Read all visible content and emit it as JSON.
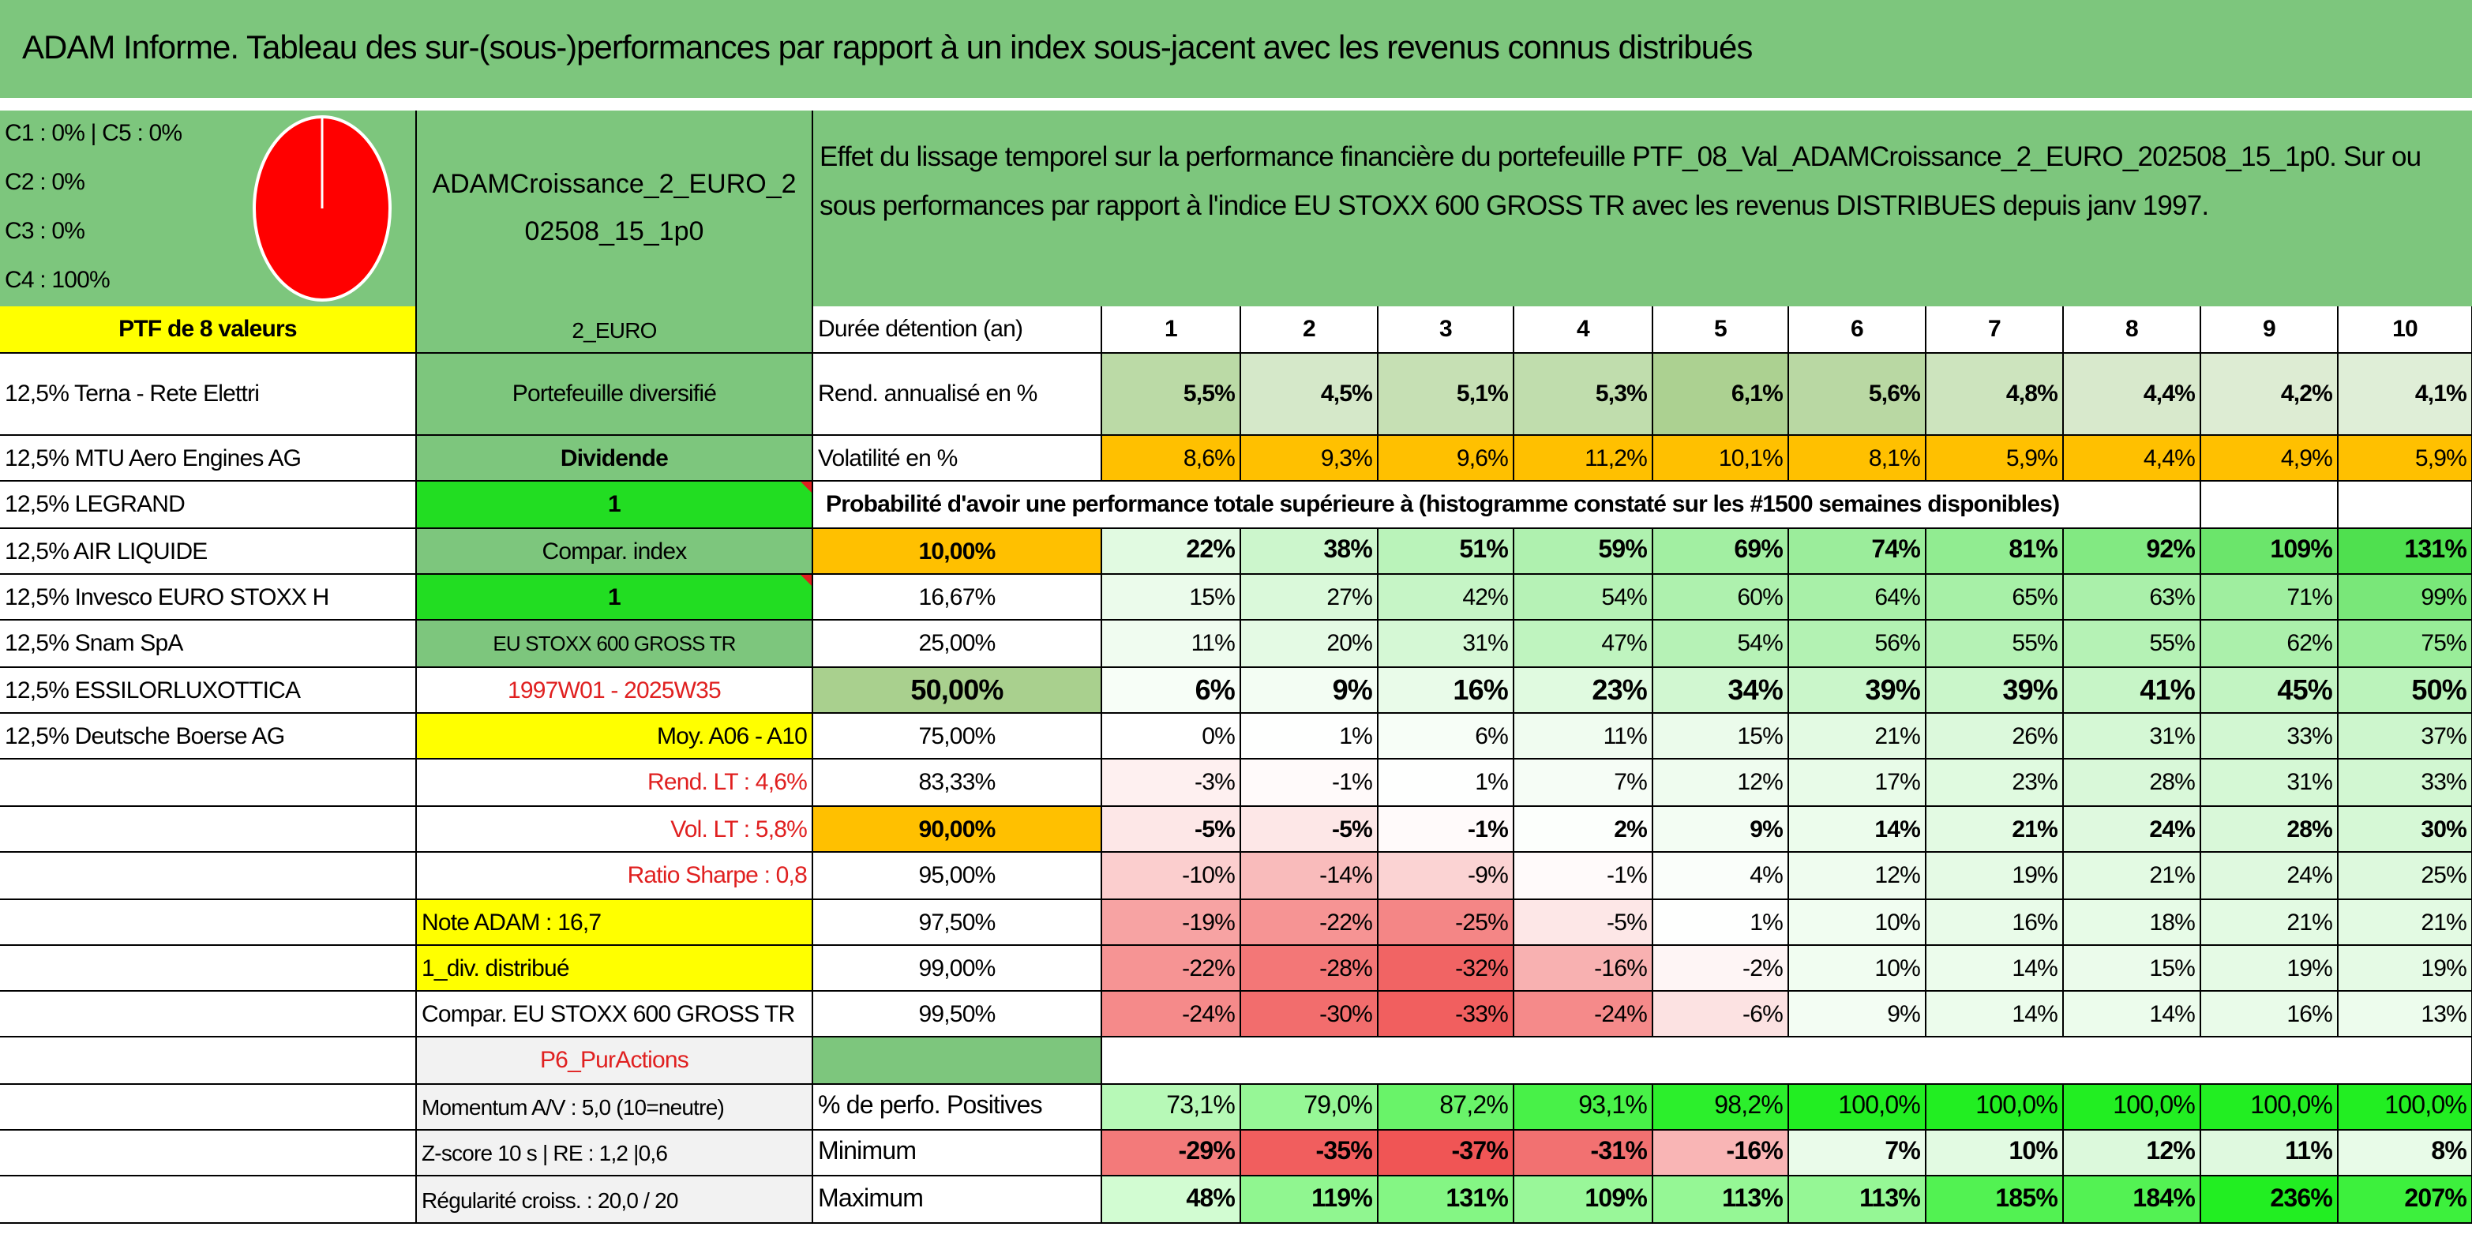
{
  "title": "ADAM Informe. Tableau des sur-(sous-)performances par rapport à un index sous-jacent avec les revenus connus distribués",
  "legend": [
    "C1 : 0% | C5 : 0%",
    "C2 : 0%",
    "C3 : 0%",
    "C4 : 100%"
  ],
  "fund": "ADAMCroissance_2_EURO_202508_15_1p0",
  "description": "Effet du lissage temporel sur la performance financière du portefeuille PTF_08_Val_ADAMCroissance_2_EURO_202508_15_1p0. Sur ou sous performances par rapport à l'indice EU STOXX 600 GROSS TR avec les revenus DISTRIBUES depuis janv 1997.",
  "holdings_header": "PTF de 8 valeurs",
  "holdings": [
    "12,5% Terna - Rete Elettri",
    "12,5% MTU Aero Engines AG",
    "12,5% LEGRAND",
    "12,5% AIR LIQUIDE",
    "12,5% Invesco EURO STOXX H",
    "12,5% Snam SpA",
    "12,5% ESSILORLUXOTTICA",
    "12,5% Deutsche Boerse AG"
  ],
  "info": [
    "2_EURO",
    "Portefeuille diversifié",
    "Dividende",
    "1",
    "Compar. index",
    "1",
    "EU STOXX 600 GROSS TR",
    "1997W01 - 2025W35",
    "Moy. A06 - A10",
    "Rend. LT : 4,6%",
    "Vol. LT : 5,8%",
    "Ratio Sharpe : 0,8",
    "Note ADAM : 16,7",
    "1_div. distribué",
    "Compar. EU STOXX 600 GROSS TR",
    "P6_PurActions",
    "Momentum A/V : 5,0 (10=neutre)",
    "Z-score 10 s | RE : 1,2 |0,6",
    "Régularité croiss. : 20,0 / 20"
  ],
  "years_label": "Durée détention (an)",
  "years": [
    1,
    2,
    3,
    4,
    5,
    6,
    7,
    8,
    9,
    10
  ],
  "annual": {
    "label": "Rend. annualisé en %",
    "values": [
      "5,5%",
      "4,5%",
      "5,1%",
      "5,3%",
      "6,1%",
      "5,6%",
      "4,8%",
      "4,4%",
      "4,2%",
      "4,1%"
    ]
  },
  "volatility": {
    "label": "Volatilité en %",
    "values": [
      "8,6%",
      "9,3%",
      "9,6%",
      "11,2%",
      "10,1%",
      "8,1%",
      "5,9%",
      "4,4%",
      "4,9%",
      "5,9%"
    ]
  },
  "probability_title": "Probabilité d'avoir une performance totale supérieure à (histogramme constaté sur les #1500 semaines disponibles)",
  "probability": {
    "thresholds": [
      "10,00%",
      "16,67%",
      "25,00%",
      "50,00%",
      "75,00%",
      "83,33%",
      "90,00%",
      "95,00%",
      "97,50%",
      "99,00%",
      "99,50%"
    ],
    "rows": [
      [
        "22%",
        "38%",
        "51%",
        "59%",
        "69%",
        "74%",
        "81%",
        "92%",
        "109%",
        "131%"
      ],
      [
        "15%",
        "27%",
        "42%",
        "54%",
        "60%",
        "64%",
        "65%",
        "63%",
        "71%",
        "99%"
      ],
      [
        "11%",
        "20%",
        "31%",
        "47%",
        "54%",
        "56%",
        "55%",
        "55%",
        "62%",
        "75%"
      ],
      [
        "6%",
        "9%",
        "16%",
        "23%",
        "34%",
        "39%",
        "39%",
        "41%",
        "45%",
        "50%"
      ],
      [
        "0%",
        "1%",
        "6%",
        "11%",
        "15%",
        "21%",
        "26%",
        "31%",
        "33%",
        "37%"
      ],
      [
        "-3%",
        "-1%",
        "1%",
        "7%",
        "12%",
        "17%",
        "23%",
        "28%",
        "31%",
        "33%"
      ],
      [
        "-5%",
        "-5%",
        "-1%",
        "2%",
        "9%",
        "14%",
        "21%",
        "24%",
        "28%",
        "30%"
      ],
      [
        "-10%",
        "-14%",
        "-9%",
        "-1%",
        "4%",
        "12%",
        "19%",
        "21%",
        "24%",
        "25%"
      ],
      [
        "-19%",
        "-22%",
        "-25%",
        "-5%",
        "1%",
        "10%",
        "16%",
        "18%",
        "21%",
        "21%"
      ],
      [
        "-22%",
        "-28%",
        "-32%",
        "-16%",
        "-2%",
        "10%",
        "14%",
        "15%",
        "19%",
        "19%"
      ],
      [
        "-24%",
        "-30%",
        "-33%",
        "-24%",
        "-6%",
        "9%",
        "14%",
        "14%",
        "16%",
        "13%"
      ]
    ]
  },
  "stats": [
    {
      "label": "% de perfo. Positives",
      "values": [
        "73,1%",
        "79,0%",
        "87,2%",
        "93,1%",
        "98,2%",
        "100,0%",
        "100,0%",
        "100,0%",
        "100,0%",
        "100,0%"
      ]
    },
    {
      "label": "Minimum",
      "values": [
        "-29%",
        "-35%",
        "-37%",
        "-31%",
        "-16%",
        "7%",
        "10%",
        "12%",
        "11%",
        "8%"
      ]
    },
    {
      "label": "Maximum",
      "values": [
        "48%",
        "119%",
        "131%",
        "109%",
        "113%",
        "113%",
        "185%",
        "184%",
        "236%",
        "207%"
      ]
    }
  ]
}
